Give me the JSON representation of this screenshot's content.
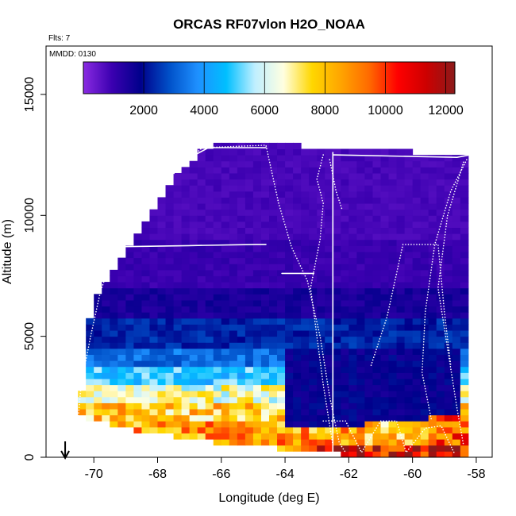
{
  "chart_data": {
    "type": "heatmap",
    "title": "ORCAS RF07vlon H2O_NOAA",
    "flights_note": "Flts: 7",
    "date_note": "MMDD: 0130",
    "xlabel": "Longitude (deg E)",
    "ylabel": "Altitude (m)",
    "xlim": [
      -71.5,
      -57.5
    ],
    "ylim": [
      0,
      17000
    ],
    "x_ticks": [
      -70,
      -68,
      -66,
      -64,
      -62,
      -60,
      -58
    ],
    "x_tick_labels": [
      "-70",
      "-68",
      "-66",
      "-64",
      "-62",
      "-60",
      "-58"
    ],
    "y_ticks": [
      0,
      5000,
      10000,
      15000
    ],
    "y_tick_labels": [
      "0",
      "5000",
      "10000",
      "15000"
    ],
    "colorbar": {
      "range": [
        0,
        12300
      ],
      "ticks": [
        2000,
        4000,
        6000,
        8000,
        10000,
        12000
      ],
      "tick_labels": [
        "2000",
        "4000",
        "6000",
        "8000",
        "10000",
        "12000"
      ],
      "colors": [
        "#8a2be2",
        "#3b00b0",
        "#00008b",
        "#0050c8",
        "#1e90ff",
        "#00bfff",
        "#bfefff",
        "#ffffe0",
        "#ffd700",
        "#ffa500",
        "#ff6a00",
        "#ff0000",
        "#cd0000",
        "#8b1a1a"
      ]
    },
    "arrow_marker_lon": -70.9,
    "field": {
      "top_profile": [
        [
          -70.4,
          2400
        ],
        [
          -70.2,
          5000
        ],
        [
          -70.0,
          6400
        ],
        [
          -69.6,
          7100
        ],
        [
          -69.2,
          8000
        ],
        [
          -68.8,
          8900
        ],
        [
          -68.4,
          9600
        ],
        [
          -68.0,
          10400
        ],
        [
          -67.6,
          11200
        ],
        [
          -67.0,
          12100
        ],
        [
          -66.5,
          12700
        ],
        [
          -66.0,
          12800
        ],
        [
          -65.0,
          12900
        ],
        [
          -64.0,
          12800
        ],
        [
          -63.0,
          12700
        ],
        [
          -62.0,
          12600
        ],
        [
          -60.0,
          12500
        ],
        [
          -58.3,
          12500
        ]
      ],
      "bottom_profile": [
        [
          -70.8,
          1800
        ],
        [
          -70.0,
          1500
        ],
        [
          -69.0,
          1200
        ],
        [
          -68.0,
          1000
        ],
        [
          -67.0,
          800
        ],
        [
          -66.0,
          600
        ],
        [
          -65.0,
          500
        ],
        [
          -64.0,
          350
        ],
        [
          -63.0,
          200
        ],
        [
          -62.0,
          100
        ],
        [
          -58.2,
          100
        ]
      ],
      "layers": [
        {
          "alt": [
            9000,
            13000
          ],
          "value": 800
        },
        {
          "alt": [
            7000,
            9000
          ],
          "value": 1000
        },
        {
          "alt": [
            5800,
            7000
          ],
          "value": 1500
        },
        {
          "alt": [
            4600,
            5800
          ],
          "value": 2300
        },
        {
          "alt": [
            3800,
            4600
          ],
          "value": 3300
        },
        {
          "alt": [
            3000,
            3800
          ],
          "value": 4800
        },
        {
          "alt": [
            2200,
            3000
          ],
          "value": 6500
        },
        {
          "alt": [
            1500,
            2200
          ],
          "value": 7800
        },
        {
          "alt": [
            0,
            1500
          ],
          "value": 8500
        }
      ],
      "east_moist_boundary_layer": [
        {
          "lon": [
            -63.2,
            -58.2
          ],
          "alt": [
            0,
            600
          ],
          "value": 11000
        },
        {
          "lon": [
            -59.5,
            -58.2
          ],
          "alt": [
            600,
            1800
          ],
          "value": 9500
        },
        {
          "lon": [
            -61.5,
            -59.5
          ],
          "alt": [
            500,
            1400
          ],
          "value": 8000
        }
      ],
      "east_dry_midlevels": [
        {
          "lon": [
            -64.0,
            -58.5
          ],
          "alt": [
            1200,
            4500
          ],
          "value": 1800
        }
      ]
    },
    "flight_tracks": [
      {
        "style": "dotted",
        "points": [
          [
            -70.6,
            0
          ],
          [
            -70.4,
            3000
          ],
          [
            -70.1,
            5000
          ],
          [
            -69.8,
            6800
          ],
          [
            -69.5,
            8000
          ],
          [
            -68.8,
            9500
          ],
          [
            -67.6,
            11600
          ],
          [
            -66.6,
            12800
          ],
          [
            -64.6,
            12900
          ],
          [
            -64.2,
            10500
          ],
          [
            -63.8,
            8700
          ],
          [
            -63.3,
            7300
          ],
          [
            -62.9,
            5000
          ],
          [
            -62.6,
            2500
          ],
          [
            -62.3,
            600
          ],
          [
            -62.1,
            200
          ]
        ]
      },
      {
        "style": "solid",
        "points": [
          [
            -69.5,
            8700
          ],
          [
            -67.0,
            8750
          ],
          [
            -64.9,
            8800
          ],
          [
            -64.6,
            8800
          ]
        ]
      },
      {
        "style": "solid",
        "points": [
          [
            -67.9,
            11600
          ],
          [
            -67.4,
            12100
          ],
          [
            -66.4,
            12800
          ],
          [
            -64.6,
            12800
          ]
        ]
      },
      {
        "style": "solid",
        "points": [
          [
            -64.1,
            7600
          ],
          [
            -63.1,
            7600
          ]
        ]
      },
      {
        "style": "solid",
        "points": [
          [
            -62.5,
            12600
          ],
          [
            -62.5,
            0
          ]
        ]
      },
      {
        "style": "solid",
        "points": [
          [
            -62.5,
            12500
          ],
          [
            -58.6,
            12400
          ],
          [
            -58.2,
            12500
          ]
        ]
      },
      {
        "style": "dotted",
        "points": [
          [
            -62.8,
            12500
          ],
          [
            -63.0,
            11500
          ],
          [
            -62.8,
            10500
          ],
          [
            -62.9,
            9000
          ],
          [
            -63.2,
            7000
          ],
          [
            -63.0,
            5000
          ],
          [
            -62.8,
            3000
          ],
          [
            -62.5,
            500
          ]
        ]
      },
      {
        "style": "dotted",
        "points": [
          [
            -62.6,
            12300
          ],
          [
            -62.4,
            11000
          ],
          [
            -62.2,
            10200
          ]
        ]
      },
      {
        "style": "dotted",
        "points": [
          [
            -61.3,
            3800
          ],
          [
            -60.8,
            5800
          ],
          [
            -60.3,
            8800
          ],
          [
            -59.2,
            8800
          ],
          [
            -59.0,
            6000
          ],
          [
            -58.8,
            3800
          ]
        ]
      },
      {
        "style": "dotted",
        "points": [
          [
            -58.3,
            12300
          ],
          [
            -58.8,
            11000
          ],
          [
            -59.3,
            8800
          ],
          [
            -59.6,
            6000
          ],
          [
            -59.7,
            3500
          ],
          [
            -59.4,
            1500
          ]
        ]
      },
      {
        "style": "dotted",
        "points": [
          [
            -62.8,
            1500
          ],
          [
            -62.1,
            1500
          ],
          [
            -61.6,
            200
          ],
          [
            -61.0,
            1500
          ],
          [
            -60.5,
            1500
          ],
          [
            -60.2,
            200
          ],
          [
            -59.6,
            1200
          ],
          [
            -59.1,
            1300
          ],
          [
            -58.7,
            200
          ]
        ]
      },
      {
        "style": "dotted",
        "points": [
          [
            -58.4,
            12200
          ],
          [
            -58.9,
            10000
          ],
          [
            -59.2,
            7000
          ],
          [
            -58.9,
            4500
          ],
          [
            -58.6,
            2000
          ],
          [
            -58.4,
            500
          ]
        ]
      }
    ]
  }
}
